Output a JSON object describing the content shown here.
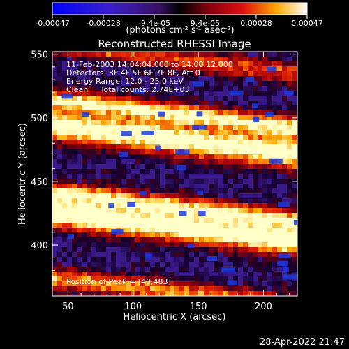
{
  "chart_data": {
    "type": "heatmap",
    "title": "Reconstructed RHESSI Image",
    "xlabel": "Heliocentric X (arcsec)",
    "ylabel": "Heliocentric Y (arcsec)",
    "xlim": [
      38,
      226
    ],
    "ylim": [
      360,
      552
    ],
    "x_ticks": [
      50,
      100,
      150,
      200
    ],
    "y_ticks": [
      400,
      450,
      500,
      550
    ],
    "colorbar": {
      "ticks": [
        "-0.00047",
        "-0.00028",
        "-9.4e-05",
        "9.4e-05",
        "0.00028",
        "0.00047"
      ],
      "label_line1": "(photons cm",
      "label_sup1": "-2",
      "label_mid1": " s",
      "label_sup2": "-1",
      "label_mid2": " asec",
      "label_sup3": "-2",
      "label_end": ")",
      "range": [
        -0.00047,
        0.00047
      ]
    },
    "annotations": [
      "11-Feb-2003 14:04:04.000 to 14:08:12.000",
      "Detectors: 3F 4F 5F 6F 7F 8F, Att 0",
      "Energy Range: 12.0 - 25.0 keV",
      "Clean     Total counts: 2.74E+03"
    ],
    "peak_text": "Position of Peak = [40,483]",
    "bands": [
      {
        "y_center": 548,
        "intensity": 0.55
      },
      {
        "y_center": 505,
        "intensity": 0.95
      },
      {
        "y_center": 488,
        "intensity": 0.85
      },
      {
        "y_center": 478,
        "intensity": 0.55
      },
      {
        "y_center": 432,
        "intensity": 0.9
      },
      {
        "y_center": 418,
        "intensity": 0.85
      },
      {
        "y_center": 410,
        "intensity": 0.5
      },
      {
        "y_center": 365,
        "intensity": 0.7
      }
    ]
  },
  "footer": {
    "timestamp": "28-Apr-2022 21:47"
  }
}
